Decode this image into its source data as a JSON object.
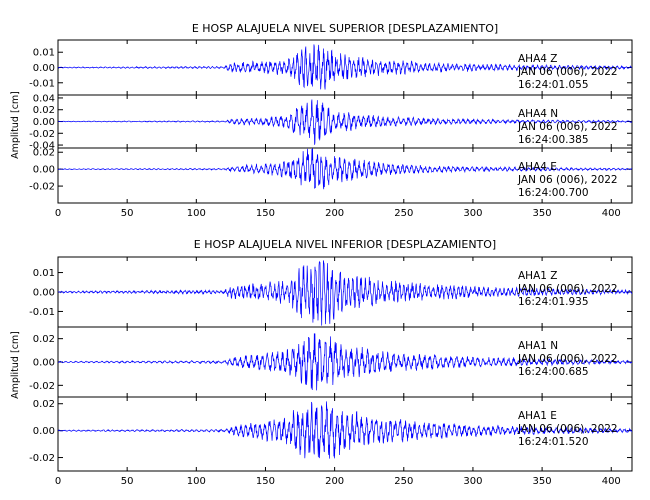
{
  "chart_data": [
    {
      "type": "line",
      "title": "E HOSP ALAJUELA NIVEL SUPERIOR [DESPLAZAMIENTO]",
      "ylabel": "Amplitud [cm]",
      "xlim": [
        0,
        415
      ],
      "x_ticks": [
        "0",
        "50",
        "100",
        "150",
        "200",
        "250",
        "300",
        "350",
        "400"
      ],
      "traces": [
        {
          "station": "AHA4",
          "component": "Z",
          "date_label": "JAN 06 (006), 2022",
          "time_label": "16:24:01.055",
          "ylim": [
            -0.018,
            0.018
          ],
          "y_ticks": [
            {
              "v": 0.01,
              "t": "0.01"
            },
            {
              "v": 0.0,
              "t": "0.00"
            },
            {
              "v": -0.01,
              "t": "-0.01"
            }
          ],
          "envelope": [
            [
              0,
              0.0003
            ],
            [
              120,
              0.0006
            ],
            [
              125,
              0.0025
            ],
            [
              165,
              0.004
            ],
            [
              178,
              0.011
            ],
            [
              188,
              0.015
            ],
            [
              200,
              0.008
            ],
            [
              230,
              0.0045
            ],
            [
              280,
              0.0025
            ],
            [
              330,
              0.0015
            ],
            [
              415,
              0.0007
            ]
          ],
          "dominant_period": 3.2,
          "seed": 11
        },
        {
          "station": "AHA4",
          "component": "N",
          "date_label": "JAN 06 (006), 2022",
          "time_label": "16:24:00.385",
          "ylim": [
            -0.045,
            0.045
          ],
          "y_ticks": [
            {
              "v": 0.04,
              "t": "0.04"
            },
            {
              "v": 0.02,
              "t": "0.02"
            },
            {
              "v": 0.0,
              "t": "0.00"
            },
            {
              "v": -0.02,
              "t": "-0.02"
            },
            {
              "v": -0.04,
              "t": "-0.04"
            }
          ],
          "envelope": [
            [
              0,
              0.0005
            ],
            [
              120,
              0.001
            ],
            [
              128,
              0.004
            ],
            [
              165,
              0.008
            ],
            [
              178,
              0.028
            ],
            [
              188,
              0.032
            ],
            [
              200,
              0.015
            ],
            [
              235,
              0.007
            ],
            [
              280,
              0.004
            ],
            [
              330,
              0.0025
            ],
            [
              415,
              0.0012
            ]
          ],
          "dominant_period": 3.6,
          "seed": 23
        },
        {
          "station": "AHA4",
          "component": "E",
          "date_label": "JAN 06 (006), 2022",
          "time_label": "16:24:00.700",
          "ylim": [
            -0.04,
            0.025
          ],
          "y_ticks": [
            {
              "v": 0.02,
              "t": "0.02"
            },
            {
              "v": 0.0,
              "t": "0.00"
            },
            {
              "v": -0.02,
              "t": "-0.02"
            }
          ],
          "envelope": [
            [
              0,
              0.0004
            ],
            [
              120,
              0.0008
            ],
            [
              128,
              0.003
            ],
            [
              165,
              0.008
            ],
            [
              178,
              0.018
            ],
            [
              190,
              0.022
            ],
            [
              205,
              0.012
            ],
            [
              235,
              0.006
            ],
            [
              280,
              0.003
            ],
            [
              330,
              0.002
            ],
            [
              415,
              0.0008
            ]
          ],
          "dominant_period": 3.4,
          "seed": 37
        }
      ]
    },
    {
      "type": "line",
      "title": "E HOSP ALAJUELA NIVEL INFERIOR [DESPLAZAMIENTO]",
      "ylabel": "Amplitud [cm]",
      "xlim": [
        0,
        415
      ],
      "x_ticks": [
        "0",
        "50",
        "100",
        "150",
        "200",
        "250",
        "300",
        "350",
        "400"
      ],
      "traces": [
        {
          "station": "AHA1",
          "component": "Z",
          "date_label": "JAN 06 (006), 2022",
          "time_label": "16:24:01.935",
          "ylim": [
            -0.018,
            0.018
          ],
          "y_ticks": [
            {
              "v": 0.01,
              "t": "0.01"
            },
            {
              "v": 0.0,
              "t": "0.00"
            },
            {
              "v": -0.01,
              "t": "-0.01"
            }
          ],
          "envelope": [
            [
              0,
              0.0004
            ],
            [
              120,
              0.0008
            ],
            [
              125,
              0.0028
            ],
            [
              165,
              0.005
            ],
            [
              178,
              0.012
            ],
            [
              190,
              0.016
            ],
            [
              205,
              0.009
            ],
            [
              235,
              0.005
            ],
            [
              280,
              0.003
            ],
            [
              330,
              0.0018
            ],
            [
              415,
              0.0008
            ]
          ],
          "dominant_period": 3.0,
          "seed": 53
        },
        {
          "station": "AHA1",
          "component": "N",
          "date_label": "JAN 06 (006), 2022",
          "time_label": "16:24:00.685",
          "ylim": [
            -0.03,
            0.03
          ],
          "y_ticks": [
            {
              "v": 0.02,
              "t": "0.02"
            },
            {
              "v": 0.0,
              "t": "0.00"
            },
            {
              "v": -0.02,
              "t": "-0.02"
            }
          ],
          "envelope": [
            [
              0,
              0.0005
            ],
            [
              120,
              0.001
            ],
            [
              128,
              0.004
            ],
            [
              165,
              0.008
            ],
            [
              178,
              0.018
            ],
            [
              190,
              0.022
            ],
            [
              205,
              0.013
            ],
            [
              240,
              0.007
            ],
            [
              290,
              0.004
            ],
            [
              340,
              0.0025
            ],
            [
              415,
              0.001
            ]
          ],
          "dominant_period": 3.8,
          "seed": 71
        },
        {
          "station": "AHA1",
          "component": "E",
          "date_label": "JAN 06 (006), 2022",
          "time_label": "16:24:01.520",
          "ylim": [
            -0.03,
            0.025
          ],
          "y_ticks": [
            {
              "v": 0.02,
              "t": "0.02"
            },
            {
              "v": 0.0,
              "t": "0.00"
            },
            {
              "v": -0.02,
              "t": "-0.02"
            }
          ],
          "envelope": [
            [
              0,
              0.0004
            ],
            [
              120,
              0.0008
            ],
            [
              128,
              0.003
            ],
            [
              165,
              0.008
            ],
            [
              178,
              0.018
            ],
            [
              190,
              0.022
            ],
            [
              210,
              0.012
            ],
            [
              245,
              0.007
            ],
            [
              290,
              0.004
            ],
            [
              340,
              0.0025
            ],
            [
              415,
              0.001
            ]
          ],
          "dominant_period": 3.5,
          "seed": 89
        }
      ]
    }
  ],
  "colors": {
    "trace": "#0000ff",
    "axis": "#000000",
    "background": "#ffffff"
  }
}
